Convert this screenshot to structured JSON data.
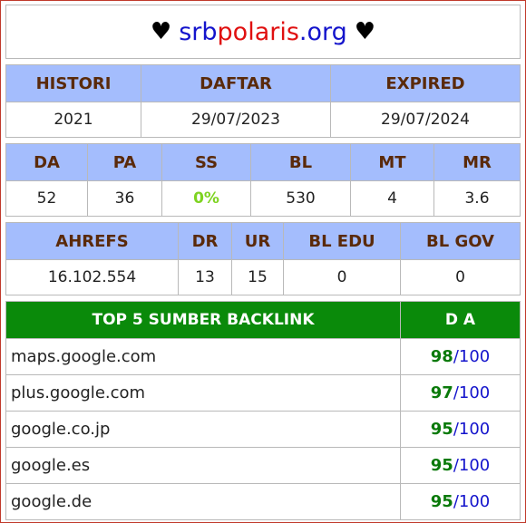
{
  "title": {
    "heart_left": "♥",
    "part_blue_1": "srb",
    "part_red": "polaris",
    "part_blue_2": ".org",
    "heart_right": "♥"
  },
  "table1": {
    "headers": [
      "HISTORI",
      "DAFTAR",
      "EXPIRED"
    ],
    "values": [
      "2021",
      "29/07/2023",
      "29/07/2024"
    ]
  },
  "table2": {
    "headers": [
      "DA",
      "PA",
      "SS",
      "BL",
      "MT",
      "MR"
    ],
    "values": [
      "52",
      "36",
      "0%",
      "530",
      "4",
      "3.6"
    ]
  },
  "table3": {
    "headers": [
      "AHREFS",
      "DR",
      "UR",
      "BL EDU",
      "BL GOV"
    ],
    "values": [
      "16.102.554",
      "13",
      "15",
      "0",
      "0"
    ]
  },
  "backlinks": {
    "header_site": "TOP 5 SUMBER BACKLINK",
    "header_da": "D A",
    "rows": [
      {
        "site": "maps.google.com",
        "da": "98",
        "max": "/100"
      },
      {
        "site": "plus.google.com",
        "da": "97",
        "max": "/100"
      },
      {
        "site": "google.co.jp",
        "da": "95",
        "max": "/100"
      },
      {
        "site": "google.es",
        "da": "95",
        "max": "/100"
      },
      {
        "site": "google.de",
        "da": "95",
        "max": "/100"
      }
    ]
  },
  "colors": {
    "header_bg": "#a4bdfd",
    "backlink_header_bg": "#0a8a0a",
    "ss_value": "#7ed321",
    "score_green": "#0a7a0a",
    "score_blue": "#1414cc",
    "frame_border": "#c0392b"
  }
}
